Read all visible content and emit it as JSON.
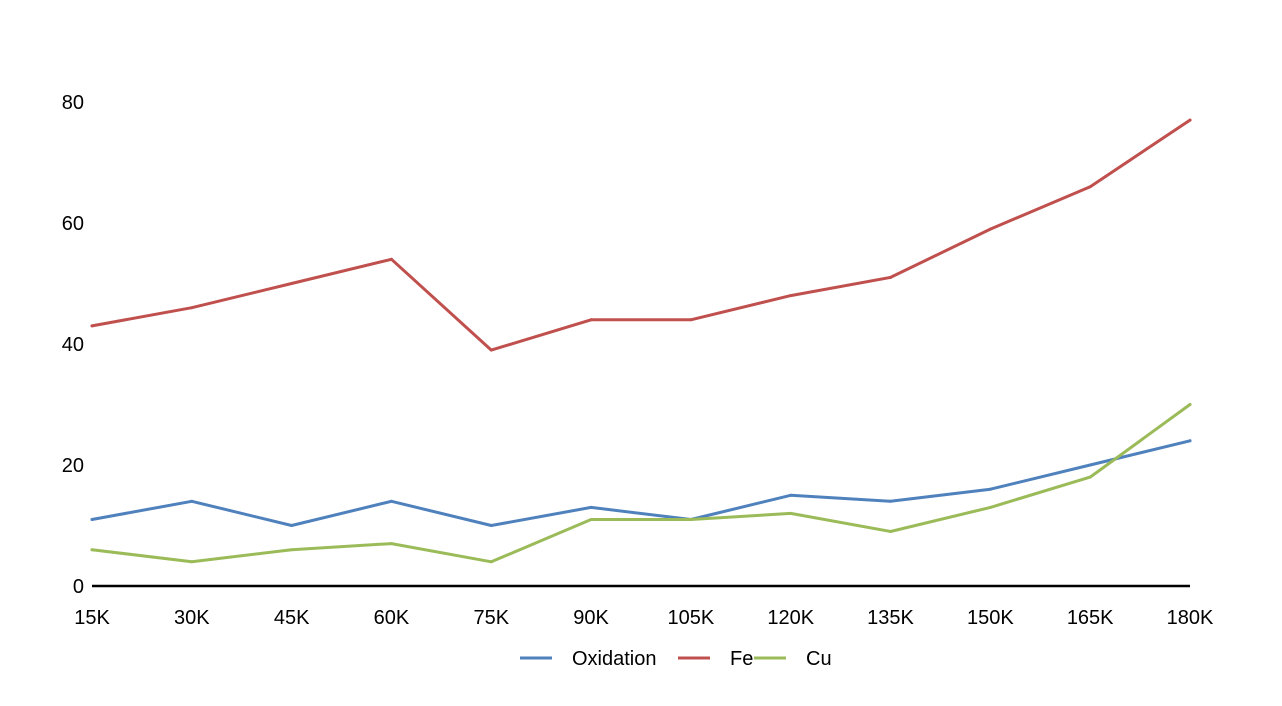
{
  "chart_data": {
    "type": "line",
    "title": "",
    "xlabel": "",
    "ylabel": "",
    "categories": [
      "15K",
      "30K",
      "45K",
      "60K",
      "75K",
      "90K",
      "105K",
      "120K",
      "135K",
      "150K",
      "165K",
      "180K"
    ],
    "ylim": [
      0,
      80
    ],
    "yticks": [
      0,
      20,
      40,
      60,
      80
    ],
    "grid": false,
    "legend": "bottom",
    "series": [
      {
        "name": "Oxidation",
        "color": "#4F81BD",
        "values": [
          11,
          14,
          10,
          14,
          10,
          13,
          11,
          15,
          14,
          16,
          20,
          24
        ]
      },
      {
        "name": "Fe",
        "color": "#C0504D",
        "values": [
          43,
          46,
          50,
          54,
          39,
          44,
          44,
          48,
          51,
          59,
          66,
          77
        ]
      },
      {
        "name": "Cu",
        "color": "#9BBB59",
        "values": [
          6,
          4,
          6,
          7,
          4,
          11,
          11,
          12,
          9,
          13,
          18,
          30
        ]
      }
    ]
  }
}
